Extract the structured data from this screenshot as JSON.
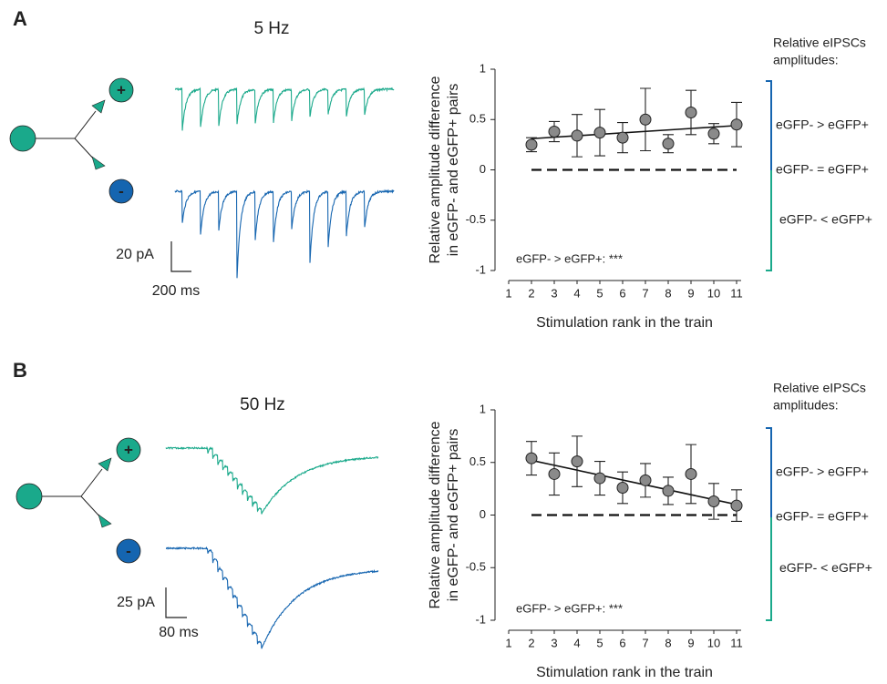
{
  "panels": [
    {
      "label": "A",
      "frequency": "5 Hz",
      "scale_current": "20 pA",
      "scale_time": "200 ms",
      "cell_types": [
        "+",
        "-"
      ]
    },
    {
      "label": "B",
      "frequency": "50 Hz",
      "scale_current": "25 pA",
      "scale_time": "80 ms",
      "cell_types": [
        "+",
        "-"
      ]
    }
  ],
  "chart_data": [
    {
      "type": "scatter",
      "ylabel": [
        "Relative amplitude difference",
        "in eGFP- and eGFP+ pairs"
      ],
      "xlabel": "Stimulation rank in the train",
      "annotation": "eGFP- > eGFP+: ***",
      "x": [
        2,
        3,
        4,
        5,
        6,
        7,
        8,
        9,
        10,
        11
      ],
      "values": [
        0.25,
        0.38,
        0.34,
        0.37,
        0.32,
        0.5,
        0.26,
        0.57,
        0.36,
        0.45
      ],
      "errors": [
        0.07,
        0.1,
        0.21,
        0.23,
        0.15,
        0.31,
        0.09,
        0.22,
        0.1,
        0.22
      ],
      "color": "#8a8a8a",
      "fit": {
        "x": [
          2,
          11
        ],
        "values": [
          0.31,
          0.44
        ]
      },
      "reference": {
        "x": [
          2,
          11
        ],
        "value": 0
      },
      "xlim": [
        1,
        11.2
      ],
      "xticks": [
        1,
        2,
        3,
        4,
        5,
        6,
        7,
        8,
        9,
        10,
        11
      ],
      "ylim": [
        -1,
        1
      ],
      "yticks": [
        -1,
        -0.5,
        0,
        0.5,
        1
      ],
      "side_title": [
        "Relative eIPSCs",
        "amplitudes:"
      ],
      "side_labels": [
        "eGFP- > eGFP+",
        "eGFP- = eGFP+",
        "eGFP- < eGFP+"
      ],
      "side_colors": [
        "#1565b0",
        "#1aa98b"
      ]
    },
    {
      "type": "scatter",
      "ylabel": [
        "Relative amplitude difference",
        "in eGFP- and eGFP+ pairs"
      ],
      "xlabel": "Stimulation rank in the train",
      "annotation": "eGFP- > eGFP+: ***",
      "x": [
        2,
        3,
        4,
        5,
        6,
        7,
        8,
        9,
        10,
        11
      ],
      "values": [
        0.54,
        0.39,
        0.51,
        0.35,
        0.26,
        0.33,
        0.23,
        0.39,
        0.13,
        0.09
      ],
      "errors": [
        0.16,
        0.2,
        0.24,
        0.16,
        0.15,
        0.16,
        0.13,
        0.28,
        0.17,
        0.15
      ],
      "color": "#8a8a8a",
      "fit": {
        "x": [
          2,
          11
        ],
        "values": [
          0.52,
          0.1
        ]
      },
      "reference": {
        "x": [
          2,
          11
        ],
        "value": 0
      },
      "xlim": [
        1,
        11.2
      ],
      "xticks": [
        1,
        2,
        3,
        4,
        5,
        6,
        7,
        8,
        9,
        10,
        11
      ],
      "ylim": [
        -1,
        1
      ],
      "yticks": [
        -1,
        -0.5,
        0,
        0.5,
        1
      ],
      "side_title": [
        "Relative eIPSCs",
        "amplitudes:"
      ],
      "side_labels": [
        "eGFP- > eGFP+",
        "eGFP- = eGFP+",
        "eGFP- < eGFP+"
      ],
      "side_colors": [
        "#1565b0",
        "#1aa98b"
      ]
    }
  ]
}
